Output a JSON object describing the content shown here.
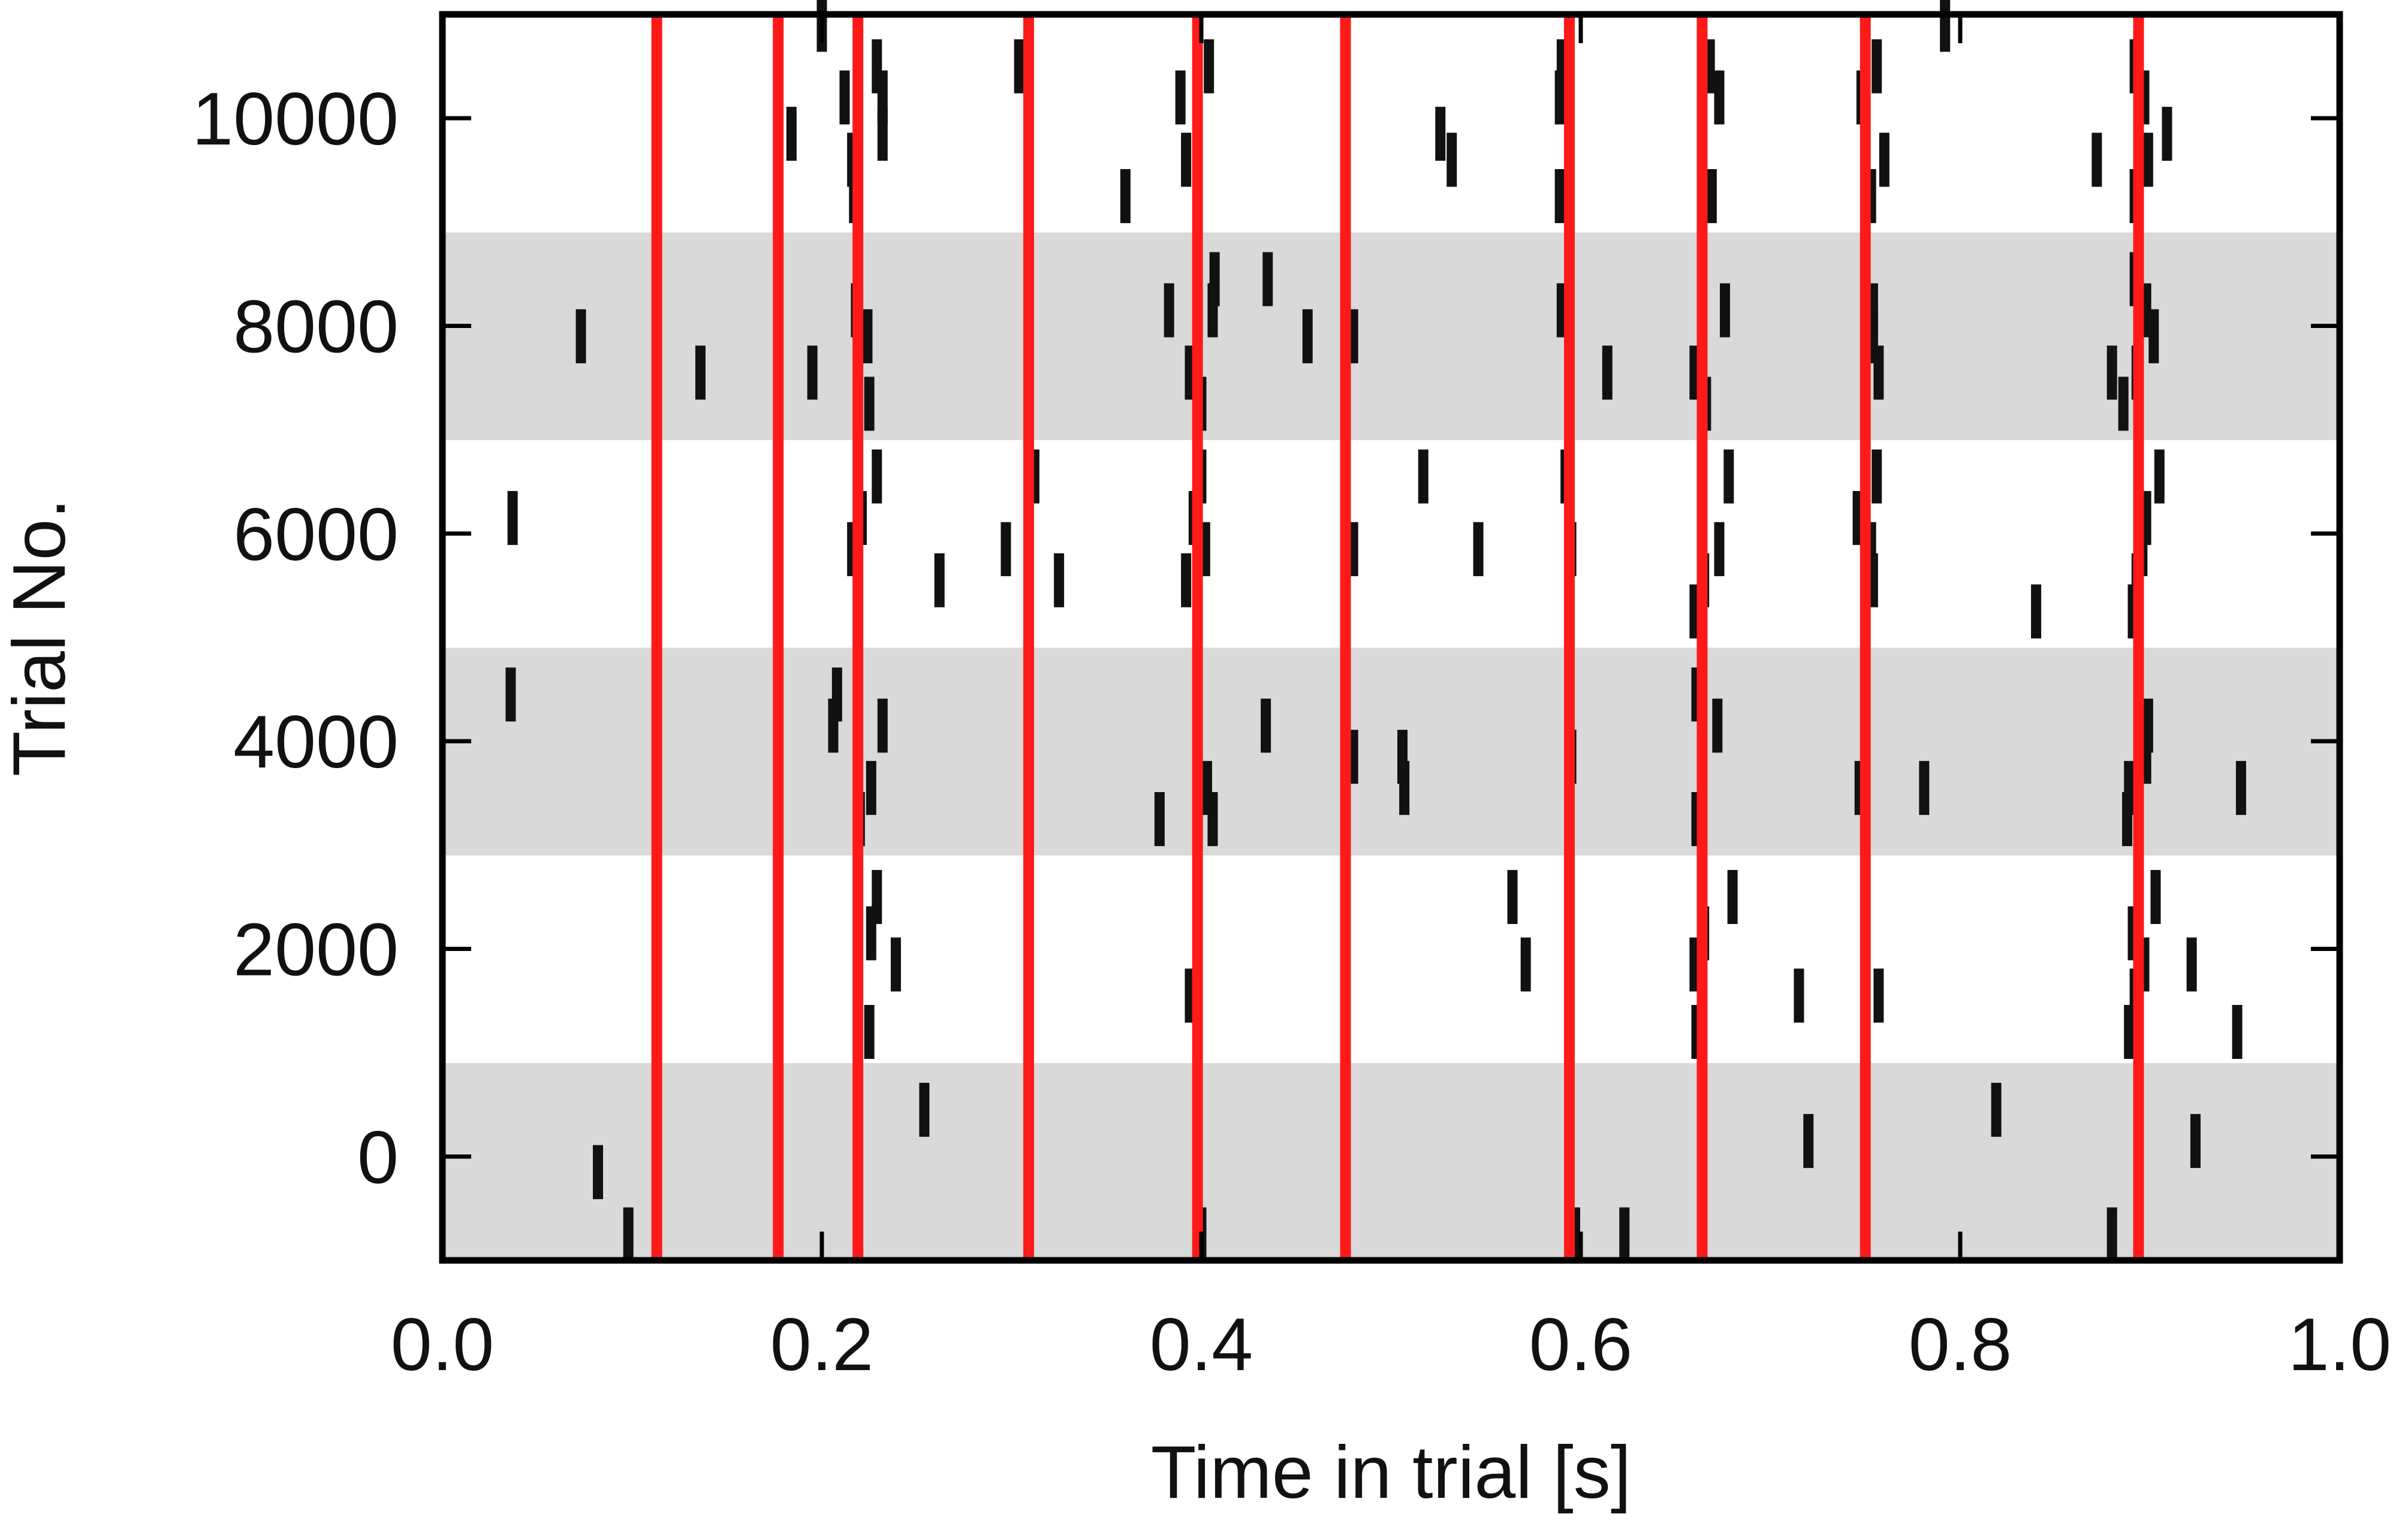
{
  "chart_data": {
    "type": "scatter",
    "title": "",
    "xlabel": "Time in trial [s]",
    "ylabel": "Trial No.",
    "xlim": [
      0.0,
      1.0
    ],
    "ylim": [
      -1000,
      11000
    ],
    "x_ticks": [
      0.0,
      0.2,
      0.4,
      0.6,
      0.8,
      1.0
    ],
    "x_tick_labels": [
      "0.0",
      "0.2",
      "0.4",
      "0.6",
      "0.8",
      "1.0"
    ],
    "y_ticks": [
      0,
      2000,
      4000,
      6000,
      8000,
      10000
    ],
    "y_tick_labels": [
      "0",
      "2000",
      "4000",
      "6000",
      "8000",
      "10000"
    ],
    "grid": false,
    "legend": "none",
    "background_bands": [
      {
        "y_from": -1000,
        "y_to": 900
      },
      {
        "y_from": 2900,
        "y_to": 4900
      },
      {
        "y_from": 6900,
        "y_to": 8900
      }
    ],
    "reference_lines_x": [
      0.113,
      0.177,
      0.219,
      0.309,
      0.398,
      0.476,
      0.594,
      0.664,
      0.75,
      0.894
    ],
    "series": [
      {
        "marker": "tick",
        "points": [
          {
            "x": 0.2,
            "y": 10900
          },
          {
            "x": 0.229,
            "y": 10500
          },
          {
            "x": 0.304,
            "y": 10500
          },
          {
            "x": 0.404,
            "y": 10500
          },
          {
            "x": 0.59,
            "y": 10500
          },
          {
            "x": 0.668,
            "y": 10500
          },
          {
            "x": 0.756,
            "y": 10500
          },
          {
            "x": 0.892,
            "y": 10500
          },
          {
            "x": 0.212,
            "y": 10200
          },
          {
            "x": 0.232,
            "y": 10200
          },
          {
            "x": 0.389,
            "y": 10200
          },
          {
            "x": 0.589,
            "y": 10200
          },
          {
            "x": 0.673,
            "y": 10200
          },
          {
            "x": 0.748,
            "y": 10200
          },
          {
            "x": 0.897,
            "y": 10200
          },
          {
            "x": 0.792,
            "y": 10900
          },
          {
            "x": 0.184,
            "y": 9850
          },
          {
            "x": 0.232,
            "y": 9850
          },
          {
            "x": 0.476,
            "y": 9850
          },
          {
            "x": 0.526,
            "y": 9850
          },
          {
            "x": 0.594,
            "y": 9850
          },
          {
            "x": 0.75,
            "y": 9850
          },
          {
            "x": 0.909,
            "y": 9850
          },
          {
            "x": 0.216,
            "y": 9600
          },
          {
            "x": 0.392,
            "y": 9600
          },
          {
            "x": 0.532,
            "y": 9600
          },
          {
            "x": 0.664,
            "y": 9600
          },
          {
            "x": 0.76,
            "y": 9600
          },
          {
            "x": 0.872,
            "y": 9600
          },
          {
            "x": 0.899,
            "y": 9600
          },
          {
            "x": 0.217,
            "y": 9250
          },
          {
            "x": 0.36,
            "y": 9250
          },
          {
            "x": 0.398,
            "y": 9250
          },
          {
            "x": 0.589,
            "y": 9250
          },
          {
            "x": 0.669,
            "y": 9250
          },
          {
            "x": 0.753,
            "y": 9250
          },
          {
            "x": 0.892,
            "y": 9250
          },
          {
            "x": 0.407,
            "y": 8450
          },
          {
            "x": 0.435,
            "y": 8450
          },
          {
            "x": 0.664,
            "y": 8450
          },
          {
            "x": 0.892,
            "y": 8450
          },
          {
            "x": 0.218,
            "y": 8150
          },
          {
            "x": 0.383,
            "y": 8150
          },
          {
            "x": 0.406,
            "y": 8150
          },
          {
            "x": 0.59,
            "y": 8150
          },
          {
            "x": 0.676,
            "y": 8150
          },
          {
            "x": 0.754,
            "y": 8150
          },
          {
            "x": 0.898,
            "y": 8150
          },
          {
            "x": 0.073,
            "y": 7900
          },
          {
            "x": 0.224,
            "y": 7900
          },
          {
            "x": 0.456,
            "y": 7900
          },
          {
            "x": 0.48,
            "y": 7900
          },
          {
            "x": 0.664,
            "y": 7900
          },
          {
            "x": 0.754,
            "y": 7900
          },
          {
            "x": 0.902,
            "y": 7900
          },
          {
            "x": 0.136,
            "y": 7550
          },
          {
            "x": 0.195,
            "y": 7550
          },
          {
            "x": 0.394,
            "y": 7550
          },
          {
            "x": 0.614,
            "y": 7550
          },
          {
            "x": 0.66,
            "y": 7550
          },
          {
            "x": 0.757,
            "y": 7550
          },
          {
            "x": 0.88,
            "y": 7550
          },
          {
            "x": 0.893,
            "y": 7550
          },
          {
            "x": 0.225,
            "y": 7250
          },
          {
            "x": 0.4,
            "y": 7250
          },
          {
            "x": 0.666,
            "y": 7250
          },
          {
            "x": 0.886,
            "y": 7250
          },
          {
            "x": 0.229,
            "y": 6550
          },
          {
            "x": 0.312,
            "y": 6550
          },
          {
            "x": 0.4,
            "y": 6550
          },
          {
            "x": 0.517,
            "y": 6550
          },
          {
            "x": 0.592,
            "y": 6550
          },
          {
            "x": 0.678,
            "y": 6550
          },
          {
            "x": 0.756,
            "y": 6550
          },
          {
            "x": 0.905,
            "y": 6550
          },
          {
            "x": 0.037,
            "y": 6150
          },
          {
            "x": 0.221,
            "y": 6150
          },
          {
            "x": 0.396,
            "y": 6150
          },
          {
            "x": 0.594,
            "y": 6150
          },
          {
            "x": 0.746,
            "y": 6150
          },
          {
            "x": 0.898,
            "y": 6150
          },
          {
            "x": 0.216,
            "y": 5850
          },
          {
            "x": 0.297,
            "y": 5850
          },
          {
            "x": 0.402,
            "y": 5850
          },
          {
            "x": 0.48,
            "y": 5850
          },
          {
            "x": 0.546,
            "y": 5850
          },
          {
            "x": 0.595,
            "y": 5850
          },
          {
            "x": 0.673,
            "y": 5850
          },
          {
            "x": 0.753,
            "y": 5850
          },
          {
            "x": 0.896,
            "y": 5850
          },
          {
            "x": 0.219,
            "y": 5550
          },
          {
            "x": 0.262,
            "y": 5550
          },
          {
            "x": 0.325,
            "y": 5550
          },
          {
            "x": 0.392,
            "y": 5550
          },
          {
            "x": 0.665,
            "y": 5550
          },
          {
            "x": 0.754,
            "y": 5550
          },
          {
            "x": 0.893,
            "y": 5550
          },
          {
            "x": 0.66,
            "y": 5250
          },
          {
            "x": 0.75,
            "y": 5250
          },
          {
            "x": 0.84,
            "y": 5250
          },
          {
            "x": 0.891,
            "y": 5250
          },
          {
            "x": 0.036,
            "y": 4450
          },
          {
            "x": 0.208,
            "y": 4450
          },
          {
            "x": 0.661,
            "y": 4450
          },
          {
            "x": 0.206,
            "y": 4150
          },
          {
            "x": 0.232,
            "y": 4150
          },
          {
            "x": 0.398,
            "y": 4150
          },
          {
            "x": 0.434,
            "y": 4150
          },
          {
            "x": 0.672,
            "y": 4150
          },
          {
            "x": 0.899,
            "y": 4150
          },
          {
            "x": 0.219,
            "y": 3850
          },
          {
            "x": 0.48,
            "y": 3850
          },
          {
            "x": 0.506,
            "y": 3850
          },
          {
            "x": 0.595,
            "y": 3850
          },
          {
            "x": 0.898,
            "y": 3850
          },
          {
            "x": 0.226,
            "y": 3550
          },
          {
            "x": 0.403,
            "y": 3550
          },
          {
            "x": 0.507,
            "y": 3550
          },
          {
            "x": 0.664,
            "y": 3550
          },
          {
            "x": 0.747,
            "y": 3550
          },
          {
            "x": 0.781,
            "y": 3550
          },
          {
            "x": 0.889,
            "y": 3550
          },
          {
            "x": 0.948,
            "y": 3550
          },
          {
            "x": 0.22,
            "y": 3250
          },
          {
            "x": 0.378,
            "y": 3250
          },
          {
            "x": 0.406,
            "y": 3250
          },
          {
            "x": 0.661,
            "y": 3250
          },
          {
            "x": 0.888,
            "y": 3250
          },
          {
            "x": 0.229,
            "y": 2500
          },
          {
            "x": 0.564,
            "y": 2500
          },
          {
            "x": 0.594,
            "y": 2500
          },
          {
            "x": 0.68,
            "y": 2500
          },
          {
            "x": 0.903,
            "y": 2500
          },
          {
            "x": 0.226,
            "y": 2150
          },
          {
            "x": 0.398,
            "y": 2150
          },
          {
            "x": 0.665,
            "y": 2150
          },
          {
            "x": 0.891,
            "y": 2150
          },
          {
            "x": 0.239,
            "y": 1850
          },
          {
            "x": 0.571,
            "y": 1850
          },
          {
            "x": 0.66,
            "y": 1850
          },
          {
            "x": 0.897,
            "y": 1850
          },
          {
            "x": 0.922,
            "y": 1850
          },
          {
            "x": 0.219,
            "y": 1550
          },
          {
            "x": 0.394,
            "y": 1550
          },
          {
            "x": 0.664,
            "y": 1550
          },
          {
            "x": 0.715,
            "y": 1550
          },
          {
            "x": 0.757,
            "y": 1550
          },
          {
            "x": 0.892,
            "y": 1550
          },
          {
            "x": 0.225,
            "y": 1200
          },
          {
            "x": 0.661,
            "y": 1200
          },
          {
            "x": 0.889,
            "y": 1200
          },
          {
            "x": 0.946,
            "y": 1200
          },
          {
            "x": 0.254,
            "y": 450
          },
          {
            "x": 0.819,
            "y": 450
          },
          {
            "x": 0.594,
            "y": 150
          },
          {
            "x": 0.72,
            "y": 150
          },
          {
            "x": 0.924,
            "y": 150
          },
          {
            "x": 0.082,
            "y": -150
          },
          {
            "x": 0.098,
            "y": -750
          },
          {
            "x": 0.4,
            "y": -750
          },
          {
            "x": 0.597,
            "y": -750
          },
          {
            "x": 0.623,
            "y": -750
          },
          {
            "x": 0.88,
            "y": -750
          }
        ]
      }
    ],
    "colors": {
      "reference_line": "#ff1a1a",
      "band": "#d9d9d9",
      "spike": "#111111",
      "frame": "#000000"
    }
  }
}
